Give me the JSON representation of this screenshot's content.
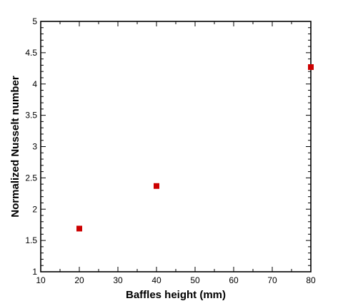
{
  "chart_data": {
    "type": "scatter",
    "title": "",
    "xlabel": "Baffles height (mm)",
    "ylabel": "Normalized Nusselt number",
    "xlim": [
      10,
      80
    ],
    "ylim": [
      1,
      5
    ],
    "x_ticks": [
      10,
      20,
      30,
      40,
      50,
      60,
      70,
      80
    ],
    "y_ticks": [
      1,
      1.5,
      2,
      2.5,
      3,
      3.5,
      4,
      4.5,
      5
    ],
    "x_tick_labels": [
      "10",
      "20",
      "30",
      "40",
      "50",
      "60",
      "70",
      "80"
    ],
    "y_tick_labels": [
      "1",
      "1.5",
      "2",
      "2.5",
      "3",
      "3.5",
      "4",
      "4.5",
      "5"
    ],
    "grid": false,
    "marker": "square",
    "marker_color": "#cc0000",
    "series": [
      {
        "x": [
          20,
          40,
          80
        ],
        "y": [
          1.69,
          2.37,
          4.27
        ]
      }
    ]
  }
}
